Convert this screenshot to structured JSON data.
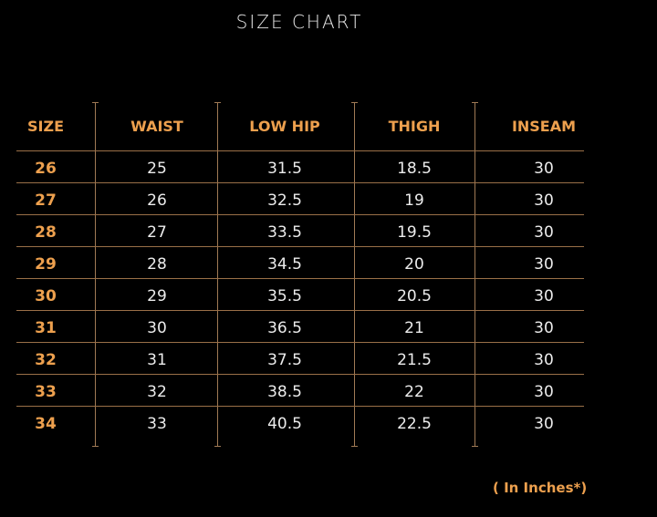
{
  "title": "SIZE CHART",
  "headers": [
    "SIZE",
    "WAIST",
    "LOW HIP",
    "THIGH",
    "INSEAM"
  ],
  "rows": [
    [
      "26",
      "25",
      "31.5",
      "18.5",
      "30"
    ],
    [
      "27",
      "26",
      "32.5",
      "19",
      "30"
    ],
    [
      "28",
      "27",
      "33.5",
      "19.5",
      "30"
    ],
    [
      "29",
      "28",
      "34.5",
      "20",
      "30"
    ],
    [
      "30",
      "29",
      "35.5",
      "20.5",
      "30"
    ],
    [
      "31",
      "30",
      "36.5",
      "21",
      "30"
    ],
    [
      "32",
      "31",
      "37.5",
      "21.5",
      "30"
    ],
    [
      "33",
      "32",
      "38.5",
      "22",
      "30"
    ],
    [
      "34",
      "33",
      "40.5",
      "22.5",
      "30"
    ]
  ],
  "note": "( In Inches*)",
  "colors": {
    "accent": "#eda04e",
    "text": "#ececec",
    "lines": "#9a7048",
    "background": "#000000"
  }
}
